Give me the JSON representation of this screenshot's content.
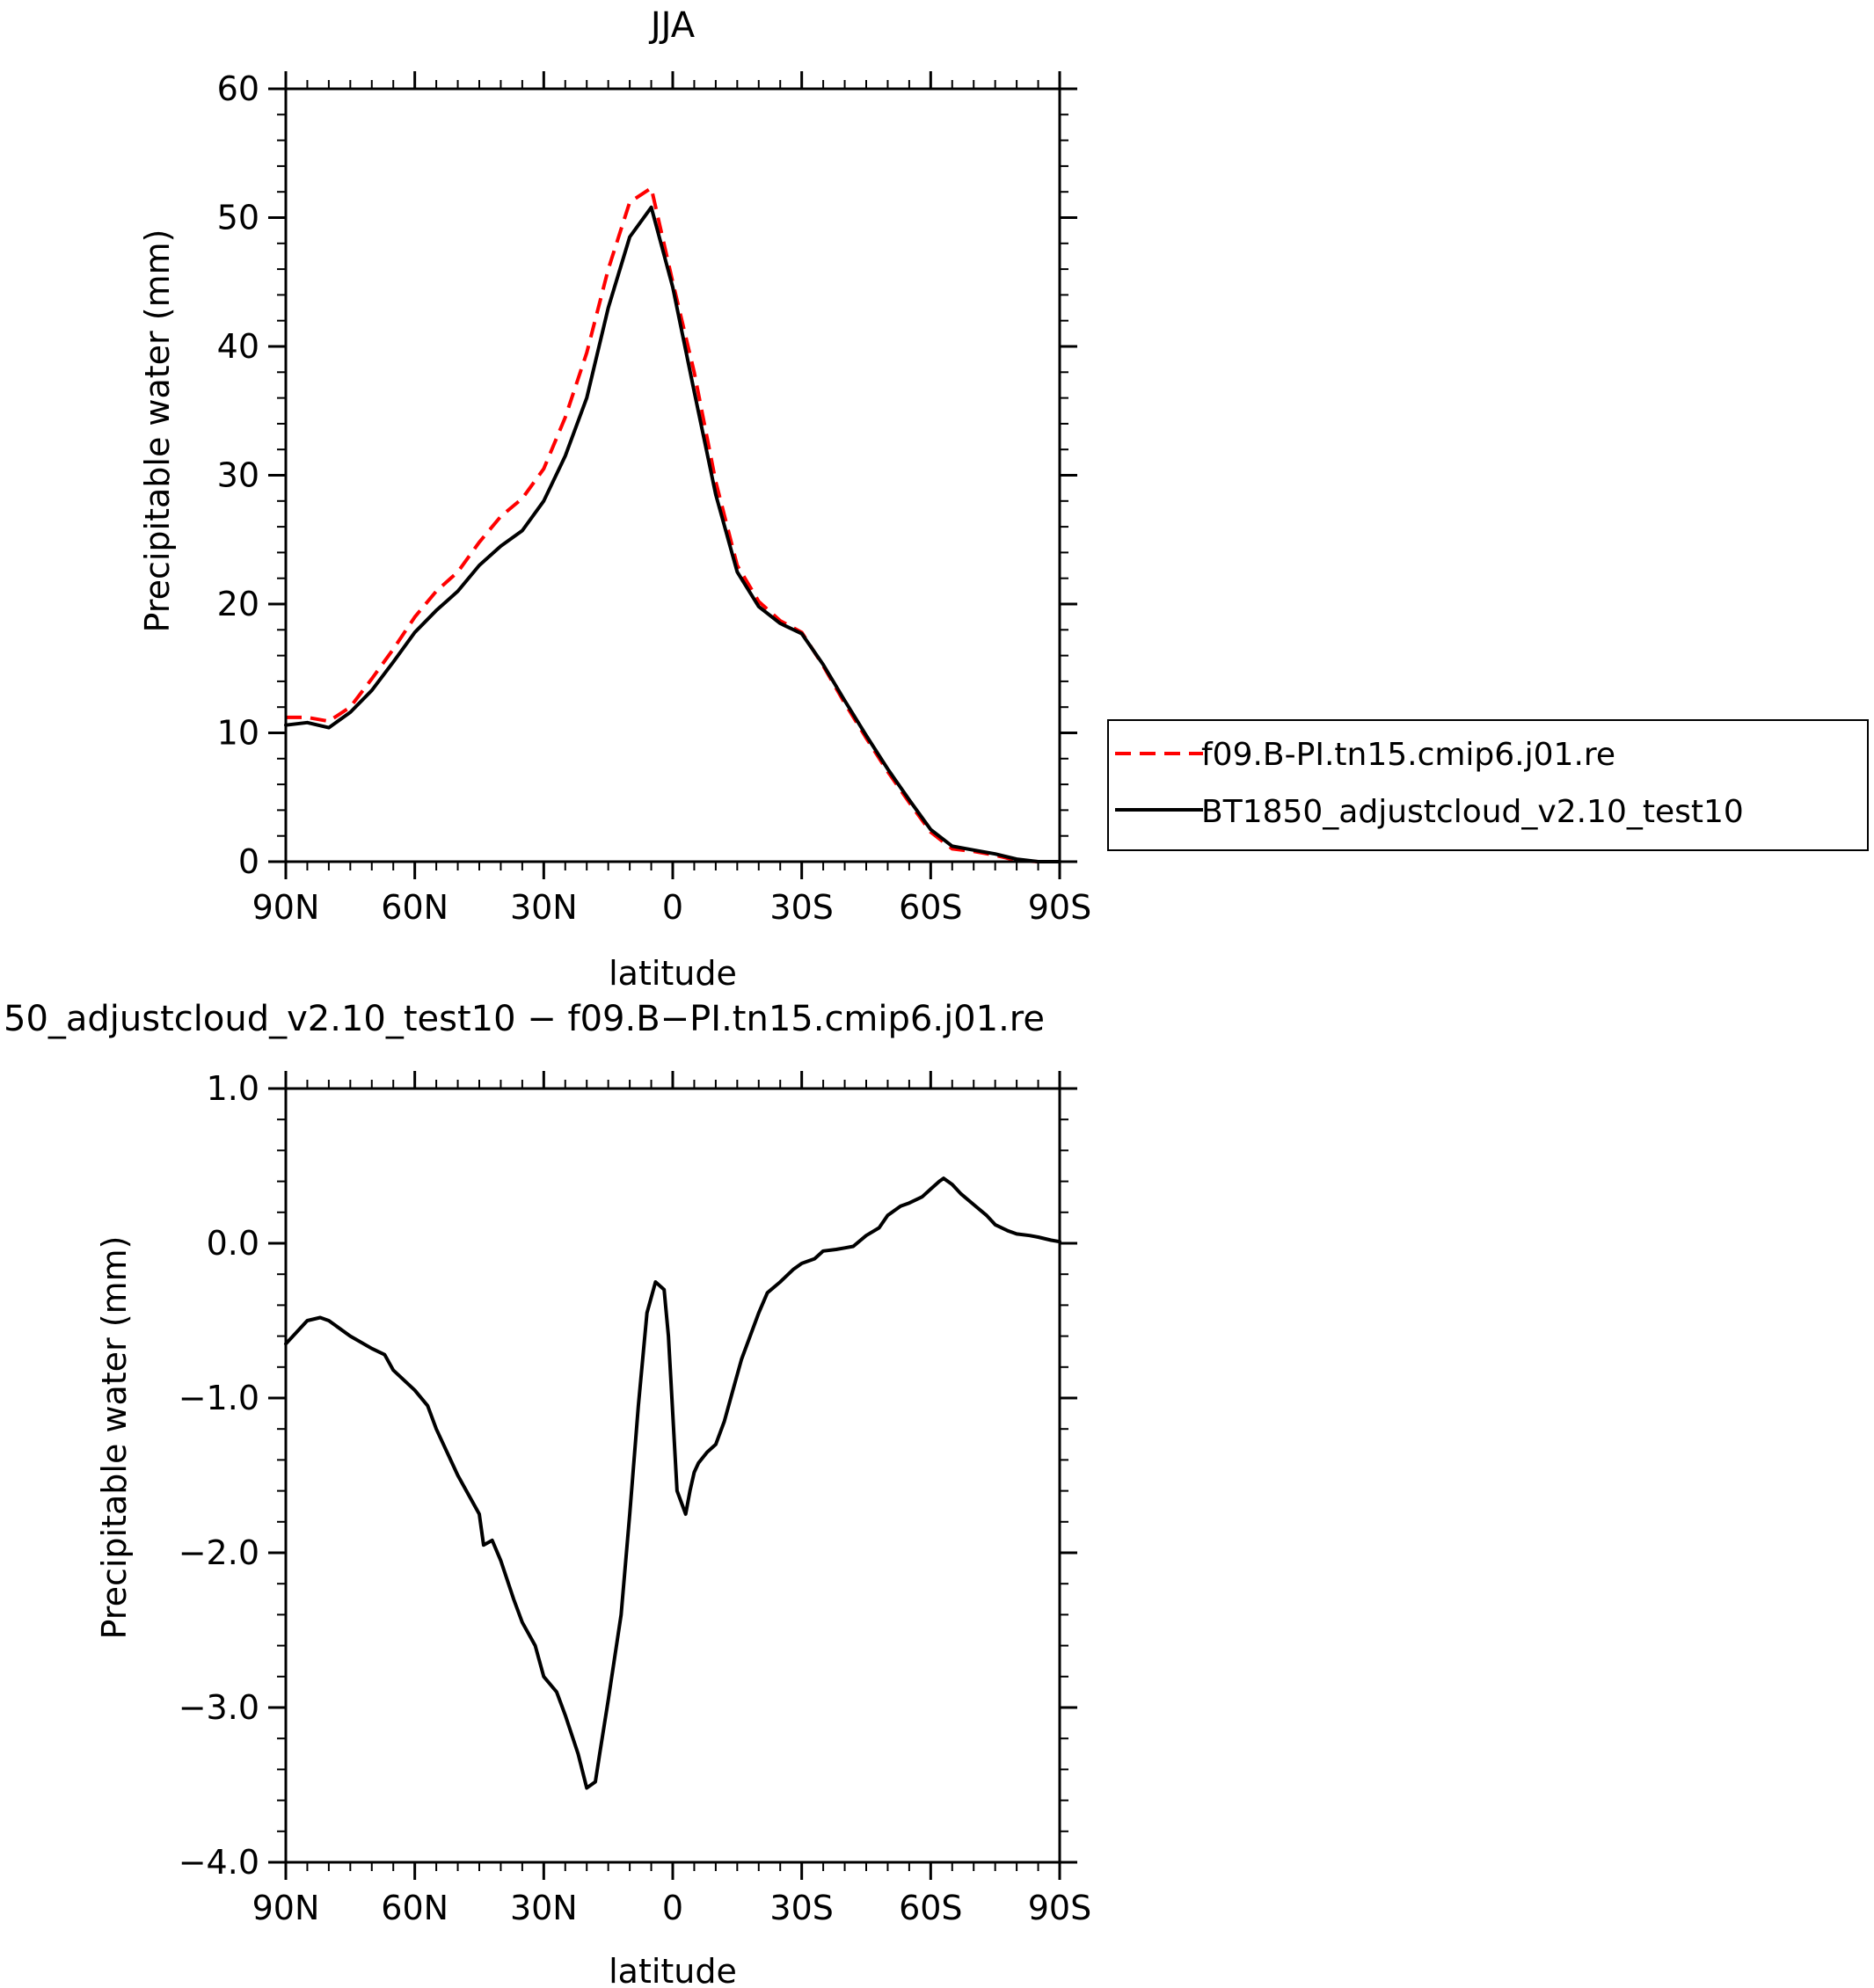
{
  "chart_data": [
    {
      "type": "line",
      "title": "JJA",
      "xlabel": "latitude",
      "ylabel": "Precipitable water (mm)",
      "xlim": [
        90,
        -90
      ],
      "ylim": [
        0,
        60
      ],
      "xticks": [
        90,
        60,
        30,
        0,
        -30,
        -60,
        -90
      ],
      "xtick_labels": [
        "90N",
        "60N",
        "30N",
        "0",
        "30S",
        "60S",
        "90S"
      ],
      "yticks": [
        0,
        10,
        20,
        30,
        40,
        50,
        60
      ],
      "ytick_labels": [
        "0",
        "10",
        "20",
        "30",
        "40",
        "50",
        "60"
      ],
      "grid": false,
      "legend_position": "right",
      "series": [
        {
          "name": "f09.B-PI.tn15.cmip6.j01.re",
          "color": "#ff0000",
          "style": "dashed",
          "x": [
            90,
            85,
            80,
            75,
            70,
            65,
            60,
            55,
            50,
            45,
            40,
            35,
            30,
            25,
            20,
            15,
            10,
            5,
            0,
            -5,
            -10,
            -15,
            -20,
            -25,
            -30,
            -35,
            -40,
            -45,
            -50,
            -55,
            -60,
            -65,
            -70,
            -75,
            -80,
            -85,
            -90
          ],
          "values": [
            11.2,
            11.2,
            10.9,
            12,
            14.2,
            16.5,
            19,
            21,
            22.5,
            24.8,
            26.8,
            28.2,
            30.5,
            34.5,
            39.5,
            46,
            51.2,
            52.3,
            45,
            38,
            29.5,
            23,
            20.2,
            18.7,
            17.8,
            15.2,
            12.3,
            9.6,
            7,
            4.6,
            2.3,
            1,
            0.8,
            0.5,
            0.1,
            0.0,
            0.0
          ]
        },
        {
          "name": "BT1850_adjustcloud_v2.10_test10",
          "color": "#000000",
          "style": "solid",
          "x": [
            90,
            85,
            80,
            75,
            70,
            65,
            60,
            55,
            50,
            45,
            40,
            35,
            30,
            25,
            20,
            15,
            10,
            5,
            0,
            -5,
            -10,
            -15,
            -20,
            -25,
            -30,
            -35,
            -40,
            -45,
            -50,
            -55,
            -60,
            -65,
            -70,
            -75,
            -80,
            -85,
            -90
          ],
          "values": [
            10.6,
            10.8,
            10.4,
            11.6,
            13.3,
            15.5,
            17.8,
            19.5,
            21,
            23,
            24.5,
            25.7,
            28,
            31.5,
            36,
            43,
            48.5,
            50.8,
            44.6,
            36.5,
            28.5,
            22.5,
            19.8,
            18.5,
            17.7,
            15.3,
            12.5,
            9.8,
            7.2,
            4.8,
            2.5,
            1.2,
            0.9,
            0.6,
            0.2,
            0.0,
            0.0
          ]
        }
      ]
    },
    {
      "type": "line",
      "title": "50_adjustcloud_v2.10_test10 − f09.B−PI.tn15.cmip6.j01.re",
      "xlabel": "latitude",
      "ylabel": "Precipitable water (mm)",
      "xlim": [
        90,
        -90
      ],
      "ylim": [
        -4.0,
        1.0
      ],
      "xticks": [
        90,
        60,
        30,
        0,
        -30,
        -60,
        -90
      ],
      "xtick_labels": [
        "90N",
        "60N",
        "30N",
        "0",
        "30S",
        "60S",
        "90S"
      ],
      "yticks": [
        1.0,
        0.0,
        -1.0,
        -2.0,
        -3.0,
        -4.0
      ],
      "ytick_labels": [
        "1.0",
        "0.0",
        "−1.0",
        "−2.0",
        "−3.0",
        "−4.0"
      ],
      "grid": false,
      "series": [
        {
          "color": "#000000",
          "style": "solid",
          "x": [
            90,
            85,
            82,
            80,
            75,
            70,
            67,
            65,
            60,
            57,
            55,
            50,
            45,
            44,
            42,
            40,
            37,
            35,
            32,
            30,
            27,
            25,
            22,
            20,
            18,
            17,
            15,
            12,
            10,
            8,
            6,
            4,
            2,
            1,
            0,
            -1,
            -3,
            -4,
            -5,
            -6,
            -8,
            -10,
            -12,
            -14,
            -16,
            -18,
            -20,
            -22,
            -25,
            -28,
            -30,
            -33,
            -35,
            -38,
            -40,
            -42,
            -45,
            -48,
            -50,
            -53,
            -55,
            -58,
            -60,
            -62,
            -63,
            -65,
            -67,
            -70,
            -73,
            -75,
            -78,
            -80,
            -83,
            -85,
            -88,
            -90
          ],
          "values": [
            -0.65,
            -0.5,
            -0.48,
            -0.5,
            -0.6,
            -0.68,
            -0.72,
            -0.82,
            -0.95,
            -1.05,
            -1.2,
            -1.5,
            -1.75,
            -1.95,
            -1.92,
            -2.05,
            -2.3,
            -2.45,
            -2.6,
            -2.8,
            -2.9,
            -3.05,
            -3.3,
            -3.52,
            -3.48,
            -3.3,
            -2.95,
            -2.4,
            -1.75,
            -1.05,
            -0.45,
            -0.25,
            -0.3,
            -0.6,
            -1.1,
            -1.6,
            -1.75,
            -1.6,
            -1.48,
            -1.42,
            -1.35,
            -1.3,
            -1.15,
            -0.95,
            -0.75,
            -0.6,
            -0.45,
            -0.32,
            -0.25,
            -0.17,
            -0.13,
            -0.1,
            -0.05,
            -0.04,
            -0.03,
            -0.02,
            0.05,
            0.1,
            0.18,
            0.24,
            0.26,
            0.3,
            0.35,
            0.4,
            0.42,
            0.38,
            0.32,
            0.25,
            0.18,
            0.12,
            0.08,
            0.06,
            0.05,
            0.04,
            0.02,
            0.01
          ]
        }
      ]
    }
  ]
}
